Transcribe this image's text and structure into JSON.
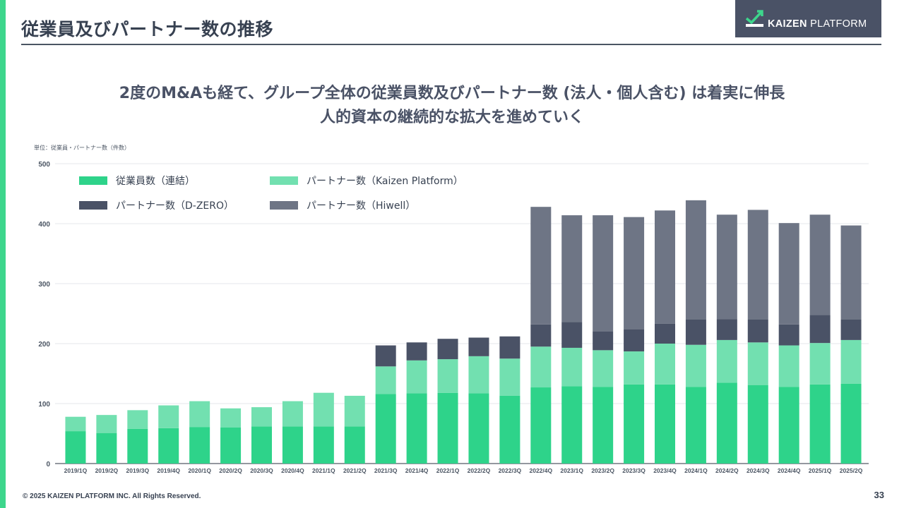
{
  "header": {
    "title": "従業員及びパートナー数の推移",
    "logo_text_bold": "KAIZEN",
    "logo_text_light": " PLATFORM"
  },
  "headline": {
    "line1": "2度のM&Aも経て、グループ全体の従業員数及びパートナー数 (法人・個人含む) は着実に伸長",
    "line2": "人的資本の継続的な拡大を進めていく"
  },
  "unit_note": "単位：従業員・パートナー数（件数）",
  "footer": {
    "copyright": "© 2025 KAIZEN PLATFORM INC. All Rights Reserved.",
    "page_number": "33"
  },
  "colors": {
    "accent": "#3dd68c",
    "employees": "#2ed38a",
    "kaizen_partners": "#72e0b0",
    "dzero_partners": "#4a5266",
    "hiwell_partners": "#6e7585",
    "logo_bg": "#4a5266"
  },
  "chart_data": {
    "type": "bar",
    "stacked": true,
    "categories": [
      "2019/1Q",
      "2019/2Q",
      "2019/3Q",
      "2019/4Q",
      "2020/1Q",
      "2020/2Q",
      "2020/3Q",
      "2020/4Q",
      "2021/1Q",
      "2021/2Q",
      "2021/3Q",
      "2021/4Q",
      "2022/1Q",
      "2022/2Q",
      "2022/3Q",
      "2022/4Q",
      "2023/1Q",
      "2023/2Q",
      "2023/3Q",
      "2023/4Q",
      "2024/1Q",
      "2024/2Q",
      "2024/3Q",
      "2024/4Q",
      "2025/1Q",
      "2025/2Q"
    ],
    "series": [
      {
        "name": "従業員数（連結）",
        "color": "#2ed38a",
        "values": [
          54,
          51,
          58,
          59,
          61,
          60,
          62,
          62,
          62,
          62,
          116,
          117,
          118,
          117,
          113,
          127,
          129,
          128,
          132,
          132,
          128,
          135,
          131,
          128,
          132,
          133
        ]
      },
      {
        "name": "パートナー数（Kaizen Platform）",
        "color": "#72e0b0",
        "values": [
          24,
          30,
          31,
          38,
          43,
          32,
          32,
          42,
          56,
          51,
          46,
          55,
          56,
          62,
          62,
          68,
          64,
          61,
          55,
          68,
          70,
          71,
          71,
          69,
          69,
          73
        ]
      },
      {
        "name": "パートナー数（D-ZERO）",
        "color": "#4a5266",
        "values": [
          0,
          0,
          0,
          0,
          0,
          0,
          0,
          0,
          0,
          0,
          35,
          30,
          34,
          31,
          37,
          37,
          43,
          31,
          37,
          33,
          42,
          35,
          38,
          35,
          47,
          34
        ]
      },
      {
        "name": "パートナー数（Hiwell）",
        "color": "#6e7585",
        "values": [
          0,
          0,
          0,
          0,
          0,
          0,
          0,
          0,
          0,
          0,
          0,
          0,
          0,
          0,
          0,
          196,
          178,
          194,
          187,
          189,
          199,
          174,
          183,
          169,
          167,
          157
        ]
      }
    ],
    "ylim": [
      0,
      500
    ],
    "yticks": [
      0,
      100,
      200,
      300,
      400,
      500
    ],
    "legend_position": "top-left",
    "grid": true
  }
}
